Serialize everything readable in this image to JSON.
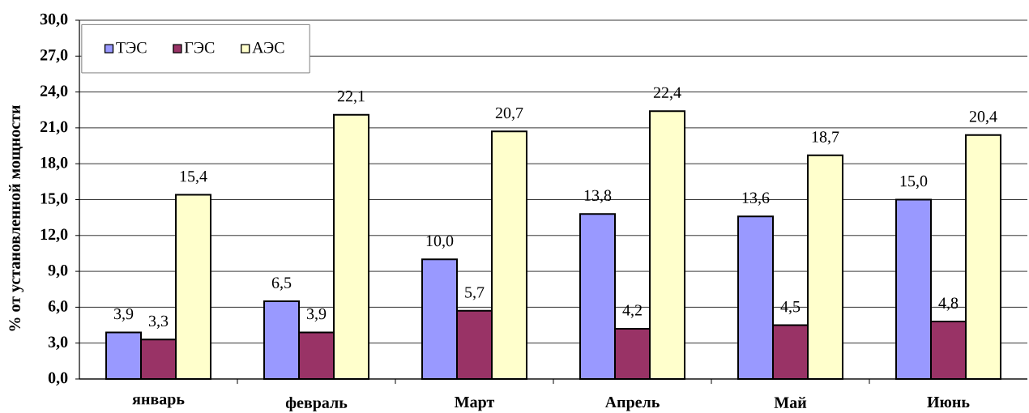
{
  "chart_data": {
    "type": "bar",
    "ylabel": "% от установленной мощности",
    "categories": [
      "январь",
      "февраль",
      "Март",
      "Апрель",
      "Май",
      "Июнь"
    ],
    "series": [
      {
        "name": "ТЭС",
        "color": "#9999ff",
        "values": [
          3.9,
          6.5,
          10.0,
          13.8,
          13.6,
          15.0
        ],
        "value_labels": [
          "3,9",
          "6,5",
          "10,0",
          "13,8",
          "13,6",
          "15,0"
        ]
      },
      {
        "name": "ГЭС",
        "color": "#993366",
        "values": [
          3.3,
          3.9,
          5.7,
          4.2,
          4.5,
          4.8
        ],
        "value_labels": [
          "3,3",
          "3,9",
          "5,7",
          "4,2",
          "4,5",
          "4,8"
        ]
      },
      {
        "name": "АЭС",
        "color": "#ffffcc",
        "values": [
          15.4,
          22.1,
          20.7,
          22.4,
          18.7,
          20.4
        ],
        "value_labels": [
          "15,4",
          "22,1",
          "20,7",
          "22,4",
          "18,7",
          "20,4"
        ]
      }
    ],
    "ylim": [
      0,
      30
    ],
    "yticks": [
      {
        "value": 0,
        "label": "0,0"
      },
      {
        "value": 3,
        "label": "3,0"
      },
      {
        "value": 6,
        "label": "6,0"
      },
      {
        "value": 9,
        "label": "9,0"
      },
      {
        "value": 12,
        "label": "12,0"
      },
      {
        "value": 15,
        "label": "15,0"
      },
      {
        "value": 18,
        "label": "18,0"
      },
      {
        "value": 21,
        "label": "21,0"
      },
      {
        "value": 24,
        "label": "24,0"
      },
      {
        "value": 27,
        "label": "27,0"
      },
      {
        "value": 30,
        "label": "30,0"
      }
    ],
    "grid": "y",
    "legend": "top left"
  }
}
